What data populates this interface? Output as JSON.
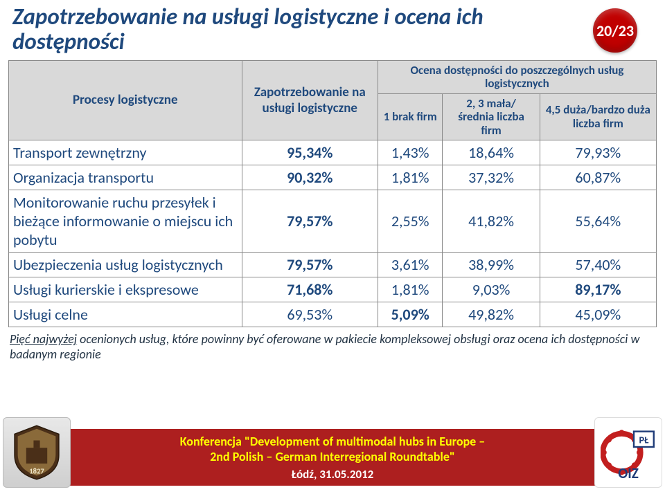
{
  "page_badge": "20/23",
  "title": "Zapotrzebowanie na usługi logistyczne i ocena ich dostępności",
  "table": {
    "header": {
      "col_process": "Procesy logistyczne",
      "col_demand": "Zapotrzebowanie na usługi logistyczne",
      "col_avail_group": "Ocena dostępności do poszczególnych usług logistycznych",
      "col_avail_1": "1 brak firm",
      "col_avail_23": "2, 3 mała/ średnia liczba firm",
      "col_avail_45": "4,5 duża/bardzo duża liczba firm"
    },
    "col_widths_pct": [
      36,
      21,
      10,
      15,
      18
    ],
    "rows": [
      {
        "label": "Transport zewnętrzny",
        "demand": "95,34%",
        "a1": "1,43%",
        "a23": "18,64%",
        "a45": "79,93%",
        "bold_demand": true
      },
      {
        "label": "Organizacja transportu",
        "demand": "90,32%",
        "a1": "1,81%",
        "a23": "37,32%",
        "a45": "60,87%",
        "bold_demand": true
      },
      {
        "label": "Monitorowanie ruchu przesyłek i bieżące informowanie o miejscu ich pobytu",
        "demand": "79,57%",
        "a1": "2,55%",
        "a23": "41,82%",
        "a45": "55,64%",
        "bold_demand": true
      },
      {
        "label": "Ubezpieczenia usług logistycznych",
        "demand": "79,57%",
        "a1": "3,61%",
        "a23": "38,99%",
        "a45": "57,40%",
        "bold_demand": true
      },
      {
        "label": "Usługi kurierskie i ekspresowe",
        "demand": "71,68%",
        "a1": "1,81%",
        "a23": "9,03%",
        "a45": "89,17%",
        "bold_demand": true,
        "bold_a45": true
      },
      {
        "label": "Usługi celne",
        "demand": "69,53%",
        "a1": "5,09%",
        "a23": "49,82%",
        "a45": "45,09%",
        "bold_a1": true
      }
    ]
  },
  "caption_underlined": "Pięć najwyżej",
  "caption_rest": " ocenionych usług, które powinny być oferowane w pakiecie kompleksowej obsługi oraz ocena ich dostępności w badanym regionie",
  "footer": {
    "conf_line1": "Konferencja \"Development of multimodal hubs in Europe –",
    "conf_line2": "2nd Polish – German Interregional Roundtable\"",
    "date": "Łódź, 31.05.2012",
    "left_logo_text": "PŁ",
    "right_logo_text": "OIZ",
    "right_logo_sub": "PŁ"
  },
  "colors": {
    "title": "#1f497d",
    "badge_bg": "#c00000",
    "badge_fg": "#ffffff",
    "header_bg": "#d9d9d9",
    "cell_fg": "#1f497d",
    "border": "#888888",
    "redbar": "#ad1f1f",
    "conf_fg": "#ffff00",
    "date_fg": "#ffffff"
  }
}
